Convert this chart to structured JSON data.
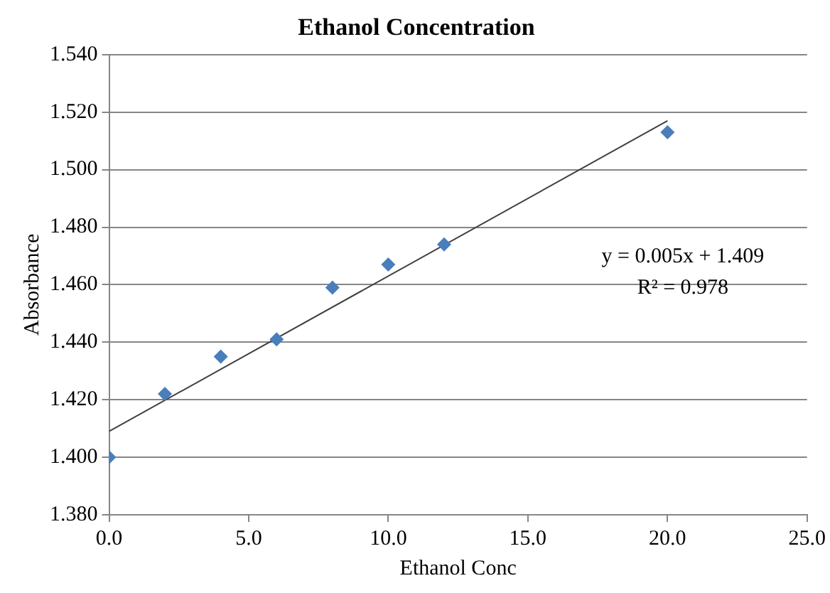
{
  "chart_data": {
    "type": "scatter",
    "title": "Ethanol Concentration",
    "xlabel": "Ethanol Conc",
    "ylabel": "Absorbance",
    "series": [
      {
        "marker": "diamond",
        "color": "#4a7ebb",
        "x": [
          0,
          2,
          4,
          6,
          8,
          10,
          12,
          20
        ],
        "values": [
          1.4,
          1.422,
          1.435,
          1.441,
          1.459,
          1.467,
          1.474,
          1.513
        ]
      },
      {
        "type": "line",
        "marker": "none",
        "color": "#404040",
        "x": [
          0,
          20
        ],
        "values": [
          1.409,
          1.517
        ]
      }
    ],
    "xlim": [
      0,
      25
    ],
    "xticks": [
      {
        "value": 0,
        "label": "0.0"
      },
      {
        "value": 5,
        "label": "5.0"
      },
      {
        "value": 10,
        "label": "10.0"
      },
      {
        "value": 15,
        "label": "15.0"
      },
      {
        "value": 20,
        "label": "20.0"
      },
      {
        "value": 25,
        "label": "25.0"
      }
    ],
    "ylim": [
      1.38,
      1.54
    ],
    "yticks": [
      {
        "value": 1.38,
        "label": "1.380"
      },
      {
        "value": 1.4,
        "label": "1.400"
      },
      {
        "value": 1.42,
        "label": "1.420"
      },
      {
        "value": 1.44,
        "label": "1.440"
      },
      {
        "value": 1.46,
        "label": "1.460"
      },
      {
        "value": 1.48,
        "label": "1.480"
      },
      {
        "value": 1.5,
        "label": "1.500"
      },
      {
        "value": 1.52,
        "label": "1.520"
      },
      {
        "value": 1.54,
        "label": "1.540"
      }
    ],
    "annotations": [
      "y = 0.005x + 1.409",
      "R² = 0.978"
    ],
    "grid": "y",
    "legend": false,
    "line_style": "solid"
  }
}
